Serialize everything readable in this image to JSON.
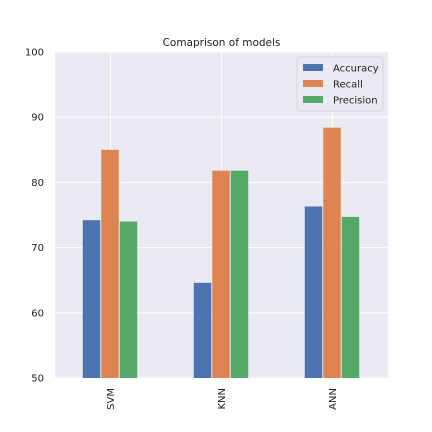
{
  "chart_data": {
    "type": "bar",
    "title": "Comaprison of models",
    "xlabel": "",
    "ylabel": "",
    "categories": [
      "SVM",
      "KNN",
      "ANN"
    ],
    "series": [
      {
        "name": "Accuracy",
        "color": "#4c72b0",
        "values": [
          74.2,
          64.6,
          76.3
        ]
      },
      {
        "name": "Recall",
        "color": "#dd8452",
        "values": [
          85.0,
          81.8,
          88.4
        ]
      },
      {
        "name": "Precision",
        "color": "#55a868",
        "values": [
          74.0,
          81.8,
          74.7
        ]
      }
    ],
    "ylim": [
      50,
      100
    ],
    "yticks": [
      50,
      60,
      70,
      80,
      90,
      100
    ],
    "grid": true,
    "legend_position": "top-right",
    "plot_background": "#eaeaf2",
    "grid_color": "#ffffff"
  }
}
